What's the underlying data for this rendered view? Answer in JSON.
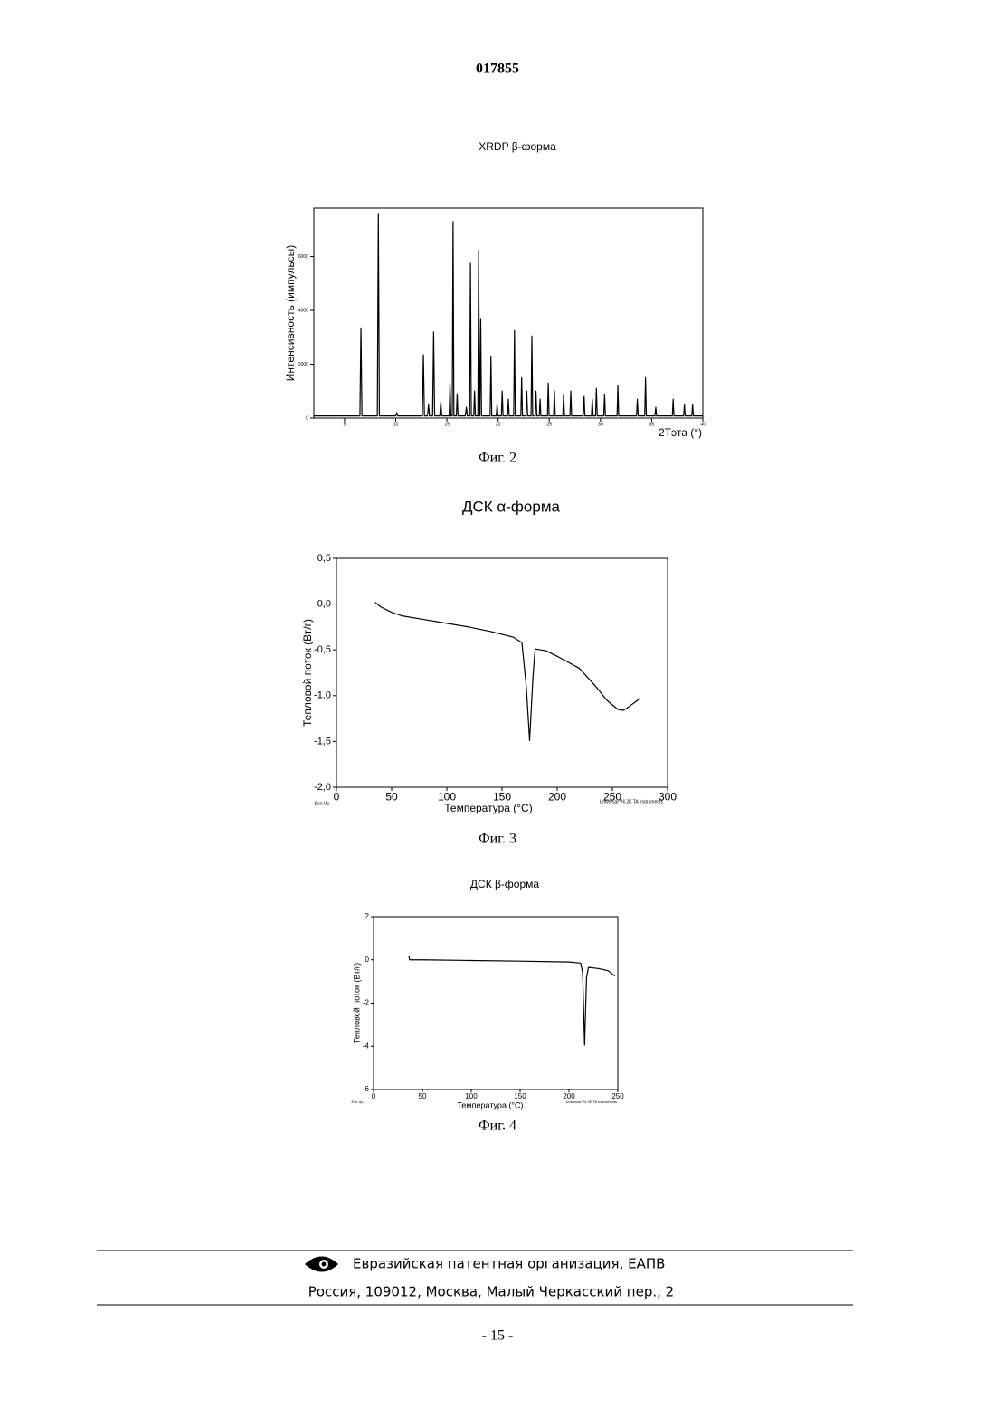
{
  "header": {
    "number": "017855"
  },
  "chart_data": [
    {
      "type": "line",
      "title": "XRDP β-форма",
      "caption": "Фиг. 2",
      "x_label": "2Тэта (°)",
      "y_label": "Интенсивность (импульсы)",
      "color": "#000000",
      "xlim": [
        2,
        40
      ],
      "xticks": [
        5,
        10,
        15,
        20,
        25,
        30,
        35,
        40
      ],
      "ylim": [
        0,
        7800
      ],
      "yticks": [
        0,
        2000,
        4000,
        6000
      ],
      "x": [
        2,
        6.5,
        6.6,
        6.7,
        8.2,
        8.3,
        8.4,
        10.0,
        10.1,
        10.2,
        12.6,
        12.7,
        12.8,
        13.1,
        13.2,
        13.3,
        13.6,
        13.7,
        13.8,
        14.3,
        14.4,
        14.5,
        15.22,
        15.3,
        15.38,
        15.52,
        15.6,
        15.68,
        15.92,
        16.0,
        16.08,
        16.8,
        16.9,
        17.0,
        17.22,
        17.3,
        17.38,
        17.62,
        17.7,
        17.78,
        18.02,
        18.1,
        18.18,
        18.22,
        18.3,
        18.38,
        19.22,
        19.3,
        19.38,
        19.82,
        19.9,
        19.98,
        20.32,
        20.4,
        20.48,
        20.92,
        21.0,
        21.08,
        21.52,
        21.6,
        21.68,
        22.22,
        22.3,
        22.38,
        22.72,
        22.8,
        22.88,
        23.22,
        23.3,
        23.38,
        23.62,
        23.7,
        23.78,
        24.02,
        24.1,
        24.18,
        24.82,
        24.9,
        24.98,
        25.42,
        25.5,
        25.58,
        26.32,
        26.4,
        26.48,
        27.02,
        27.1,
        27.18,
        28.32,
        28.4,
        28.48,
        29.12,
        29.2,
        29.28,
        29.52,
        29.6,
        29.68,
        30.32,
        30.4,
        30.48,
        31.62,
        31.7,
        31.78,
        33.52,
        33.6,
        33.68,
        34.32,
        34.4,
        34.48,
        35.32,
        35.4,
        35.48,
        37.02,
        37.1,
        37.18,
        38.12,
        38.2,
        38.28,
        38.92,
        39.0,
        39.08,
        40
      ],
      "values": [
        80,
        80,
        3350,
        80,
        80,
        7600,
        80,
        80,
        200,
        80,
        80,
        2350,
        80,
        80,
        500,
        80,
        80,
        3200,
        80,
        80,
        600,
        80,
        80,
        1300,
        80,
        80,
        7300,
        80,
        80,
        900,
        80,
        80,
        400,
        80,
        80,
        5750,
        80,
        80,
        1000,
        80,
        80,
        6250,
        80,
        80,
        3700,
        80,
        80,
        2300,
        80,
        80,
        500,
        80,
        80,
        1000,
        80,
        80,
        700,
        80,
        80,
        3250,
        80,
        80,
        1500,
        80,
        80,
        1000,
        80,
        80,
        3050,
        80,
        80,
        1000,
        80,
        80,
        700,
        80,
        80,
        1300,
        80,
        80,
        1000,
        80,
        80,
        900,
        80,
        80,
        1000,
        80,
        80,
        800,
        80,
        80,
        700,
        80,
        80,
        1100,
        80,
        80,
        900,
        80,
        80,
        1200,
        80,
        80,
        700,
        80,
        80,
        1500,
        80,
        80,
        400,
        80,
        80,
        700,
        80,
        80,
        500,
        80,
        80,
        500,
        80,
        80
      ]
    },
    {
      "type": "line",
      "title": "ДСК α-форма",
      "caption": "Фиг. 3",
      "x_label": "Температура (°C)",
      "y_label": "Тепловой поток (Вт/г)",
      "color": "#000000",
      "annotations": [
        "Exo Up",
        "Universal V4.2E TA Instruments"
      ],
      "xlim": [
        0,
        300
      ],
      "xticks": [
        0,
        50,
        100,
        150,
        200,
        250,
        300
      ],
      "ylim": [
        -2,
        0.5
      ],
      "yticks": [
        {
          "value": -2,
          "label": "-2,0"
        },
        {
          "value": -1.5,
          "label": "-1,5"
        },
        {
          "value": -1,
          "label": "-1,0"
        },
        {
          "value": -0.5,
          "label": "-0,5"
        },
        {
          "value": 0,
          "label": "0,0"
        },
        {
          "value": 0.5,
          "label": "0,5"
        }
      ],
      "x": [
        35,
        40,
        50,
        60,
        80,
        100,
        120,
        140,
        160,
        168,
        172,
        175,
        178,
        180,
        190,
        200,
        220,
        235,
        245,
        255,
        260,
        265,
        274
      ],
      "values": [
        0.02,
        -0.03,
        -0.09,
        -0.13,
        -0.17,
        -0.21,
        -0.25,
        -0.3,
        -0.36,
        -0.42,
        -0.9,
        -1.49,
        -0.8,
        -0.49,
        -0.51,
        -0.57,
        -0.7,
        -0.9,
        -1.05,
        -1.15,
        -1.16,
        -1.12,
        -1.04
      ]
    },
    {
      "type": "line",
      "title": "ДСК β-форма",
      "caption": "Фиг. 4",
      "x_label": "Температура (°C)",
      "y_label": "Тепловой поток (Вт/г)",
      "color": "#000000",
      "annotations": [
        "Exo Up",
        "Universal V4.2E TA Instruments"
      ],
      "xlim": [
        0,
        250
      ],
      "xticks": [
        0,
        50,
        100,
        150,
        200,
        250
      ],
      "ylim": [
        -6,
        2
      ],
      "yticks": [
        -6,
        -4,
        -2,
        0,
        2
      ],
      "x": [
        36,
        37,
        50,
        100,
        150,
        200,
        212,
        214,
        216,
        218,
        220,
        230,
        240,
        247
      ],
      "values": [
        0.2,
        0,
        0,
        -0.03,
        -0.06,
        -0.1,
        -0.15,
        -0.6,
        -3.95,
        -0.8,
        -0.35,
        -0.4,
        -0.5,
        -0.75
      ]
    }
  ],
  "footer": {
    "organization": "Евразийская патентная организация, ЕАПВ",
    "address": "Россия, 109012, Москва, Малый Черкасский пер., 2",
    "page": "- 15 -"
  }
}
